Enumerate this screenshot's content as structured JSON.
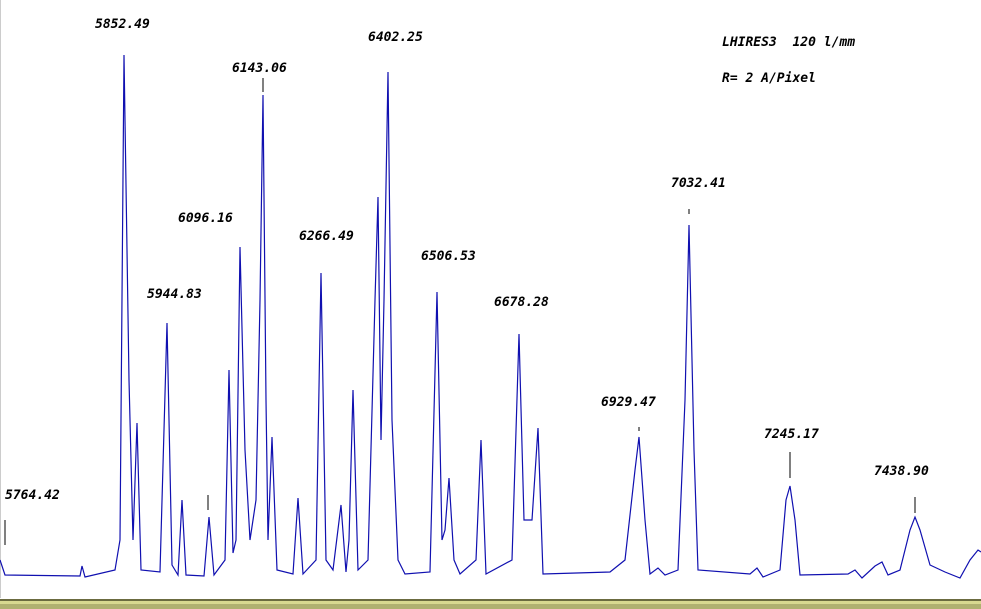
{
  "instrument": "LHIRES3  120 l/mm",
  "dispersion": "R= 2 A/Pixel",
  "peaks": [
    "5764.42",
    "5852.49",
    "5944.83",
    "6096.16",
    "6143.06",
    "6266.49",
    "6402.25",
    "6506.53",
    "6678.28",
    "6929.47",
    "7032.41",
    "7245.17",
    "7438.90"
  ]
}
